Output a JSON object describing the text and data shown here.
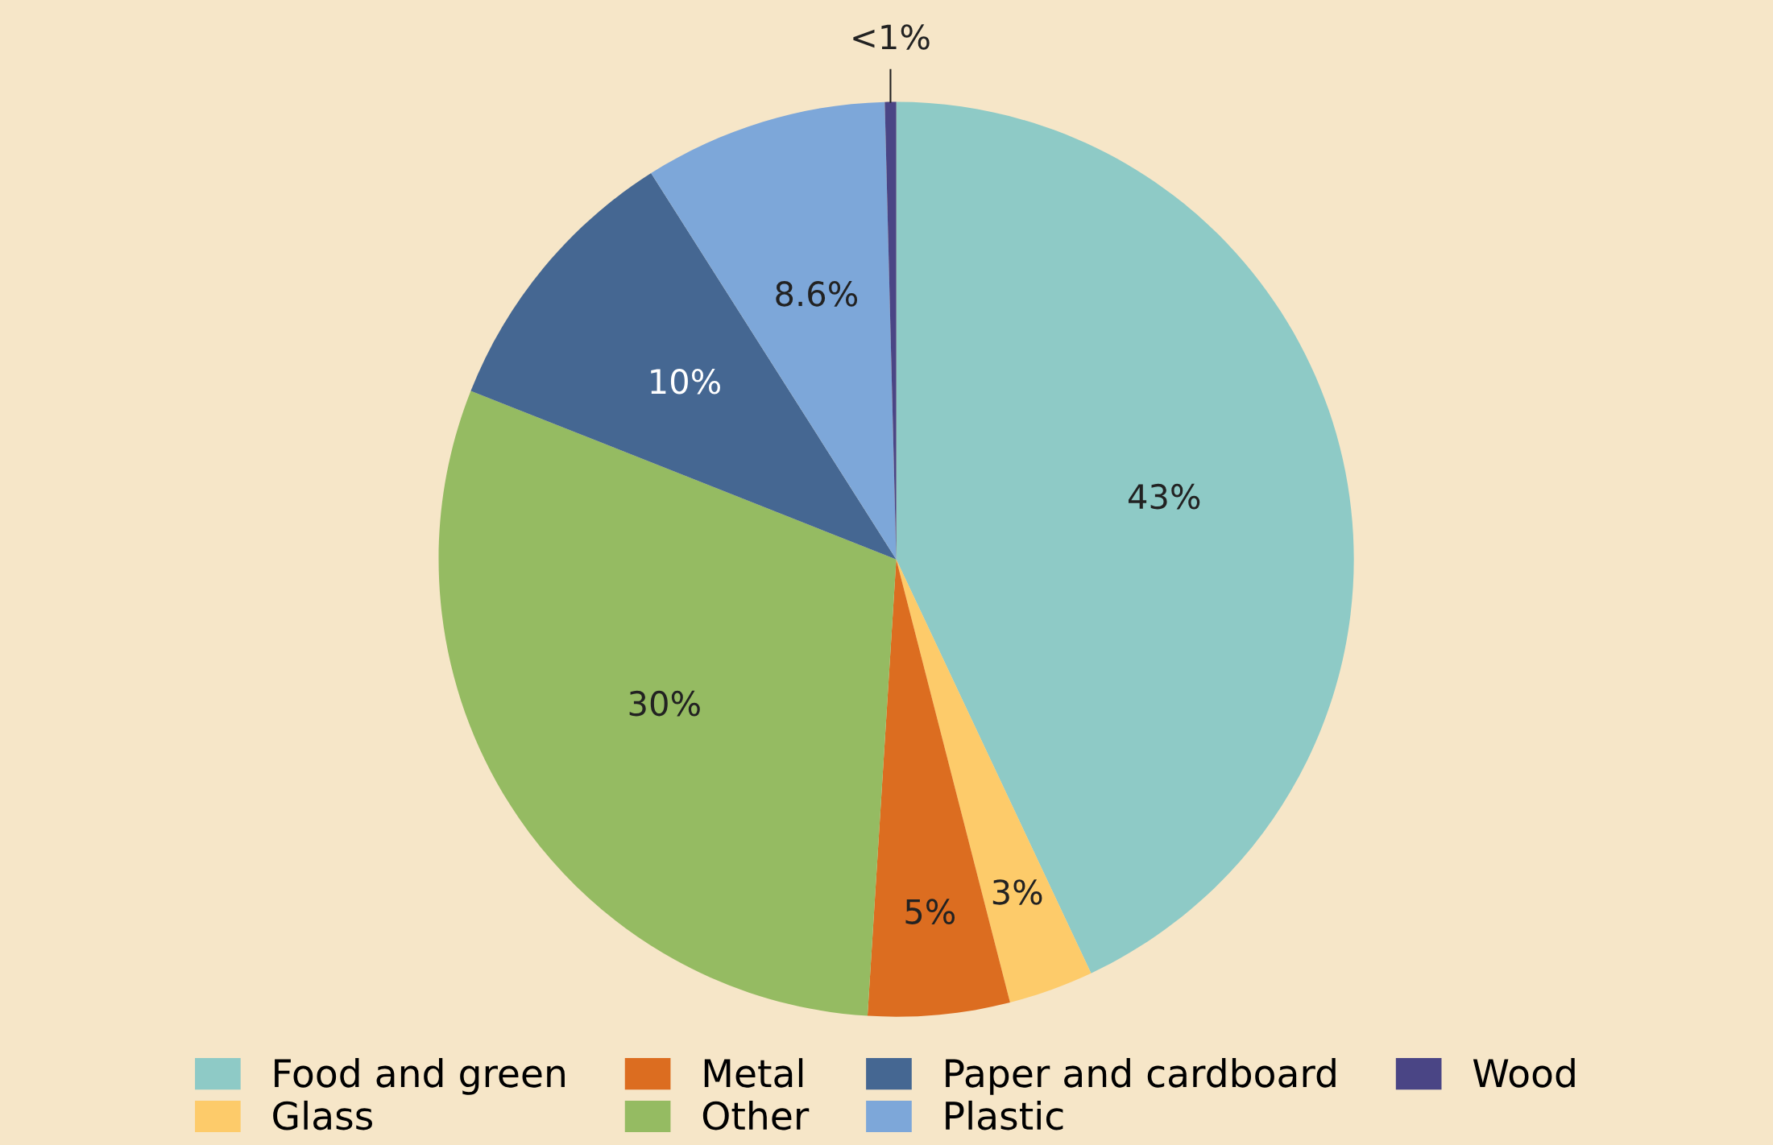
{
  "chart_data": {
    "type": "pie",
    "categories": [
      "Food and green",
      "Glass",
      "Metal",
      "Other",
      "Paper and cardboard",
      "Plastic",
      "Wood"
    ],
    "values": [
      43,
      3,
      5,
      30,
      10,
      8.6,
      0.4
    ],
    "value_labels": [
      "43%",
      "3%",
      "5%",
      "30%",
      "10%",
      "8.6%",
      "<1%"
    ],
    "colors": [
      "#8ecac6",
      "#fdcb6a",
      "#dc6d20",
      "#95bb62",
      "#456792",
      "#7da7d9",
      "#4a4585"
    ],
    "legend": "bottom"
  }
}
